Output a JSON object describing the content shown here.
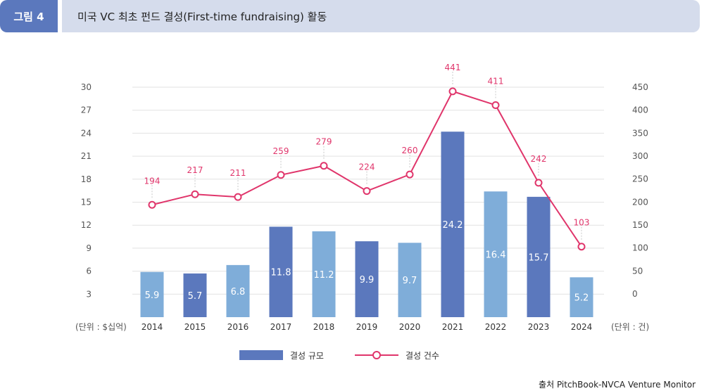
{
  "figure_label": "그림 4",
  "title": "미국 VC 최초 펀드 결성(First-time fundraising) 활동",
  "source": "출처 PitchBook-NVCA Venture Monitor",
  "colors": {
    "bar_dark": "#5b78bd",
    "bar_light": "#7fadd9",
    "line": "#e0356b"
  },
  "chart_data": {
    "type": "bar",
    "categories": [
      "2014",
      "2015",
      "2016",
      "2017",
      "2018",
      "2019",
      "2020",
      "2021",
      "2022",
      "2023",
      "2024"
    ],
    "series": [
      {
        "name": "결성 규모",
        "type": "bar",
        "axis": "left",
        "values": [
          5.9,
          5.7,
          6.8,
          11.8,
          11.2,
          9.9,
          9.7,
          24.2,
          16.4,
          15.7,
          5.2
        ],
        "labels": [
          "5.9",
          "5.7",
          "6.8",
          "11.8",
          "11.2",
          "9.9",
          "9.7",
          "24.2",
          "16.4",
          "15.7",
          "5.2"
        ],
        "shade": [
          "light",
          "dark",
          "light",
          "dark",
          "light",
          "dark",
          "light",
          "dark",
          "light",
          "dark",
          "light"
        ]
      },
      {
        "name": "결성 건수",
        "type": "line",
        "axis": "right",
        "values": [
          194,
          217,
          211,
          259,
          279,
          224,
          260,
          441,
          411,
          242,
          103
        ],
        "labels": [
          "194",
          "217",
          "211",
          "259",
          "279",
          "224",
          "260",
          "441",
          "411",
          "242",
          "103"
        ]
      }
    ],
    "y_left": {
      "ticks": [
        "3",
        "6",
        "9",
        "12",
        "15",
        "18",
        "21",
        "24",
        "27",
        "30"
      ],
      "ylim": [
        0,
        30
      ],
      "unit_label": "(단위 : $십억)"
    },
    "y_right": {
      "ticks": [
        "0",
        "50",
        "100",
        "150",
        "200",
        "250",
        "300",
        "350",
        "400",
        "450"
      ],
      "ylim": [
        -45,
        455
      ],
      "unit_label": "(단위 : 건)"
    },
    "grid": true,
    "legend_position": "bottom-center"
  }
}
